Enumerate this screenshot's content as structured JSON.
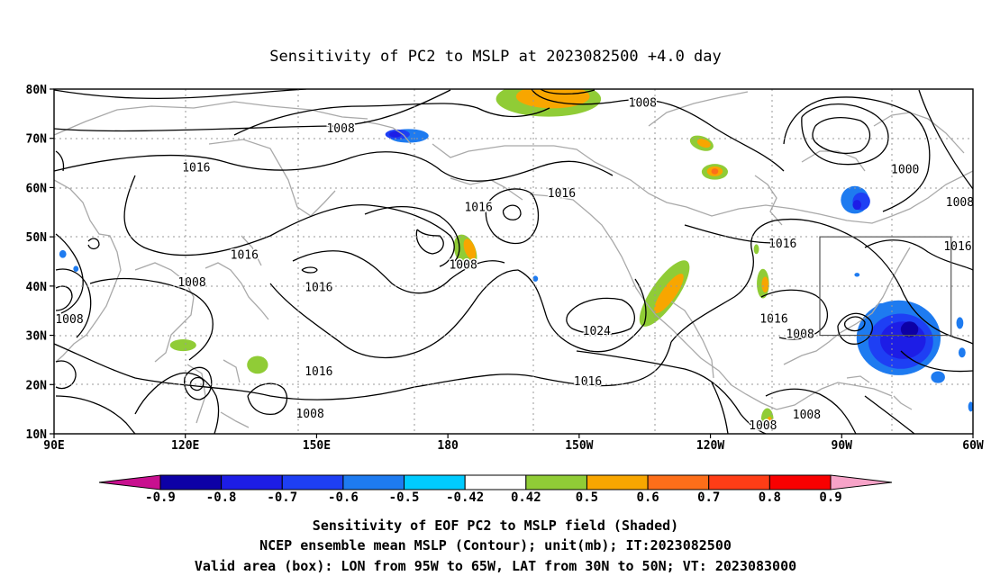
{
  "title": "Sensitivity of PC2 to MSLP at 2023082500 +4.0 day",
  "map": {
    "lon_labels": [
      "90E",
      "120E",
      "150E",
      "180",
      "150W",
      "120W",
      "90W",
      "60W"
    ],
    "lat_labels": [
      "80N",
      "70N",
      "60N",
      "50N",
      "40N",
      "30N",
      "20N",
      "10N"
    ],
    "lon_range": [
      90,
      300
    ],
    "lat_range": [
      10,
      80
    ],
    "grid": "dotted",
    "box": {
      "lon": [
        265,
        295
      ],
      "lat": [
        30,
        50
      ]
    }
  },
  "contour_labels": [
    {
      "text": "1008",
      "lon": 155.5,
      "lat": 72.0
    },
    {
      "text": "1008",
      "lon": 224.5,
      "lat": 77.2
    },
    {
      "text": "1016",
      "lon": 122.5,
      "lat": 64.0
    },
    {
      "text": "1016",
      "lon": 187.0,
      "lat": 56.0
    },
    {
      "text": "1016",
      "lon": 206.0,
      "lat": 58.8
    },
    {
      "text": "1000",
      "lon": 284.5,
      "lat": 63.6
    },
    {
      "text": "1008",
      "lon": 297.0,
      "lat": 57.0
    },
    {
      "text": "1016",
      "lon": 133.5,
      "lat": 46.3
    },
    {
      "text": "1008",
      "lon": 183.5,
      "lat": 44.3
    },
    {
      "text": "1016",
      "lon": 150.5,
      "lat": 39.7
    },
    {
      "text": "1008",
      "lon": 121.5,
      "lat": 40.7
    },
    {
      "text": "1008",
      "lon": 93.5,
      "lat": 33.2
    },
    {
      "text": "1024",
      "lon": 214.0,
      "lat": 30.8
    },
    {
      "text": "1016",
      "lon": 150.5,
      "lat": 22.6
    },
    {
      "text": "1008",
      "lon": 148.5,
      "lat": 14.0
    },
    {
      "text": "1016",
      "lon": 212.0,
      "lat": 20.6
    },
    {
      "text": "1016",
      "lon": 256.5,
      "lat": 48.6
    },
    {
      "text": "1016",
      "lon": 296.5,
      "lat": 48.0
    },
    {
      "text": "1016",
      "lon": 254.5,
      "lat": 33.3
    },
    {
      "text": "1008",
      "lon": 260.5,
      "lat": 30.2
    },
    {
      "text": "1008",
      "lon": 262.0,
      "lat": 13.8
    },
    {
      "text": "1008",
      "lon": 252.0,
      "lat": 11.6
    }
  ],
  "sensitivity_patches": [
    {
      "lon": 171.0,
      "lat": 70.5,
      "rx": 23,
      "ry": 7,
      "rot": 0,
      "level": -0.5
    },
    {
      "lon": 168.5,
      "lat": 70.8,
      "rx": 14,
      "ry": 5,
      "rot": 0,
      "level": -0.6
    },
    {
      "lon": 168.0,
      "lat": 70.8,
      "rx": 7,
      "ry": 3,
      "rot": 0,
      "level": -0.7
    },
    {
      "lon": 203.0,
      "lat": 78.0,
      "rx": 60,
      "ry": 18,
      "rot": 0,
      "level": 0.5
    },
    {
      "lon": 204.0,
      "lat": 78.5,
      "rx": 42,
      "ry": 12,
      "rot": 0,
      "level": 0.6
    },
    {
      "lon": 238.0,
      "lat": 69.0,
      "rx": 14,
      "ry": 7,
      "rot": 20,
      "level": 0.5
    },
    {
      "lon": 238.5,
      "lat": 69.0,
      "rx": 8,
      "ry": 4,
      "rot": 20,
      "level": 0.6
    },
    {
      "lon": 241.0,
      "lat": 63.2,
      "rx": 15,
      "ry": 8,
      "rot": 0,
      "level": 0.5
    },
    {
      "lon": 241.0,
      "lat": 63.3,
      "rx": 9,
      "ry": 5,
      "rot": 0,
      "level": 0.6
    },
    {
      "lon": 241.0,
      "lat": 63.3,
      "rx": 4,
      "ry": 3,
      "rot": 0,
      "level": 0.7
    },
    {
      "lon": 273.0,
      "lat": 57.5,
      "rx": 16,
      "ry": 14,
      "rot": 0,
      "level": -0.5
    },
    {
      "lon": 274.5,
      "lat": 57.2,
      "rx": 10,
      "ry": 9,
      "rot": 0,
      "level": -0.6
    },
    {
      "lon": 273.5,
      "lat": 56.5,
      "rx": 5,
      "ry": 5,
      "rot": 0,
      "level": -0.7
    },
    {
      "lon": 184.0,
      "lat": 47.0,
      "rx": 12,
      "ry": 18,
      "rot": -20,
      "level": 0.5
    },
    {
      "lon": 185.0,
      "lat": 47.5,
      "rx": 6,
      "ry": 11,
      "rot": -20,
      "level": 0.6
    },
    {
      "lon": 229.5,
      "lat": 38.5,
      "rx": 15,
      "ry": 40,
      "rot": 35,
      "level": 0.5
    },
    {
      "lon": 230.5,
      "lat": 38.5,
      "rx": 8,
      "ry": 24,
      "rot": 35,
      "level": 0.6
    },
    {
      "lon": 252.0,
      "lat": 40.5,
      "rx": 7,
      "ry": 15,
      "rot": 0,
      "level": 0.5
    },
    {
      "lon": 252.5,
      "lat": 40.3,
      "rx": 4,
      "ry": 8,
      "rot": 0,
      "level": 0.6
    },
    {
      "lon": 250.5,
      "lat": 47.5,
      "rx": 3,
      "ry": 5,
      "rot": 0,
      "level": 0.5
    },
    {
      "lon": 283.0,
      "lat": 29.5,
      "rx": 48,
      "ry": 38,
      "rot": 0,
      "level": -0.5
    },
    {
      "lon": 283.5,
      "lat": 28.8,
      "rx": 37,
      "ry": 28,
      "rot": 0,
      "level": -0.6
    },
    {
      "lon": 284.0,
      "lat": 29.0,
      "rx": 26,
      "ry": 19,
      "rot": 0,
      "level": -0.7
    },
    {
      "lon": 285.5,
      "lat": 31.2,
      "rx": 10,
      "ry": 8,
      "rot": 0,
      "level": -0.8
    },
    {
      "lon": 279.0,
      "lat": 35.5,
      "rx": 7,
      "ry": 5,
      "rot": 0,
      "level": -0.5
    },
    {
      "lon": 273.5,
      "lat": 42.3,
      "rx": 3,
      "ry": 2,
      "rot": 0,
      "level": -0.5
    },
    {
      "lon": 297.0,
      "lat": 32.5,
      "rx": 4,
      "ry": 6,
      "rot": 0,
      "level": -0.5
    },
    {
      "lon": 297.5,
      "lat": 26.5,
      "rx": 4,
      "ry": 5,
      "rot": 0,
      "level": -0.5
    },
    {
      "lon": 200.0,
      "lat": 41.5,
      "rx": 3,
      "ry": 3,
      "rot": 0,
      "level": -0.5
    },
    {
      "lon": 92.0,
      "lat": 46.5,
      "rx": 4,
      "ry": 4,
      "rot": 0,
      "level": -0.5
    },
    {
      "lon": 95.0,
      "lat": 43.5,
      "rx": 3,
      "ry": 3,
      "rot": 0,
      "level": -0.5
    },
    {
      "lon": 119.5,
      "lat": 28.0,
      "rx": 15,
      "ry": 6,
      "rot": 0,
      "level": 0.5
    },
    {
      "lon": 136.5,
      "lat": 24.0,
      "rx": 12,
      "ry": 9,
      "rot": 0,
      "level": 0.5
    },
    {
      "lon": 253.0,
      "lat": 13.0,
      "rx": 7,
      "ry": 11,
      "rot": 0,
      "level": 0.5
    },
    {
      "lon": 253.5,
      "lat": 12.5,
      "rx": 3,
      "ry": 5,
      "rot": 0,
      "level": 0.6
    },
    {
      "lon": 292.0,
      "lat": 21.5,
      "rx": 8,
      "ry": 6,
      "rot": 0,
      "level": -0.5
    },
    {
      "lon": 299.5,
      "lat": 15.5,
      "rx": 3,
      "ry": 5,
      "rot": 0,
      "level": -0.5
    }
  ],
  "colorbar": {
    "labels": [
      "-0.9",
      "-0.8",
      "-0.7",
      "-0.6",
      "-0.5",
      "-0.42",
      "0.42",
      "0.5",
      "0.6",
      "0.7",
      "0.8",
      "0.9"
    ],
    "colors": {
      "below": "#c8108f",
      "bins": [
        "#0d00a6",
        "#1d1de6",
        "#1e3ff4",
        "#1e7bf0",
        "#00cbff",
        "#ffffff",
        "#90cc36",
        "#f8a600",
        "#fd6e19",
        "#ff3d16",
        "#f90000"
      ],
      "above": "#f7a3c8"
    }
  },
  "captions": [
    "Sensitivity of EOF PC2 to MSLP field (Shaded)",
    "NCEP ensemble mean MSLP (Contour); unit(mb); IT:2023082500",
    "Valid area (box): LON from 95W to 65W, LAT from 30N to 50N; VT: 2023083000"
  ]
}
